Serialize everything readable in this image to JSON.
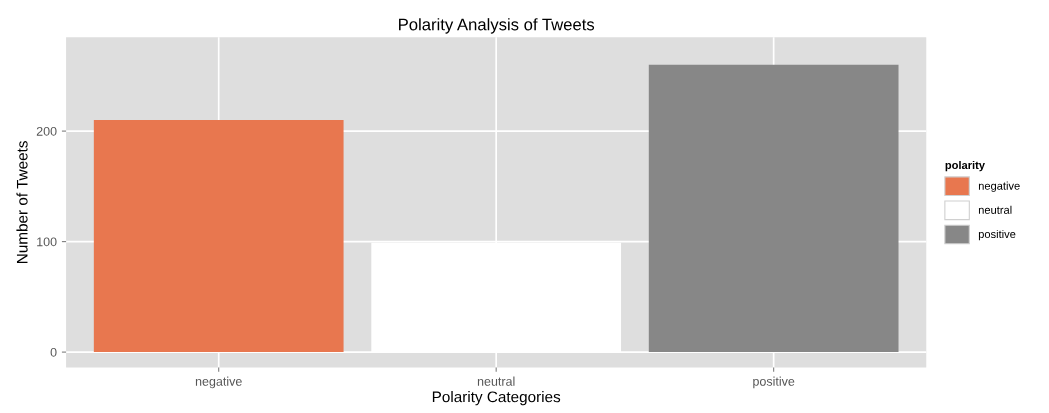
{
  "chart_data": {
    "type": "bar",
    "title": "Polarity Analysis of Tweets",
    "xlabel": "Polarity Categories",
    "ylabel": "Number of Tweets",
    "categories": [
      "negative",
      "neutral",
      "positive"
    ],
    "series": [
      {
        "name": "negative",
        "color": "#e8774f",
        "values": [
          210,
          null,
          null
        ]
      },
      {
        "name": "neutral",
        "color": "#ffffff",
        "values": [
          null,
          99,
          null
        ]
      },
      {
        "name": "positive",
        "color": "#878787",
        "values": [
          null,
          null,
          260
        ]
      }
    ],
    "ylim": [
      -14,
      285
    ],
    "yticks": [
      0,
      100,
      200
    ],
    "grid": true,
    "legend": "right",
    "legend_title": "polarity"
  }
}
